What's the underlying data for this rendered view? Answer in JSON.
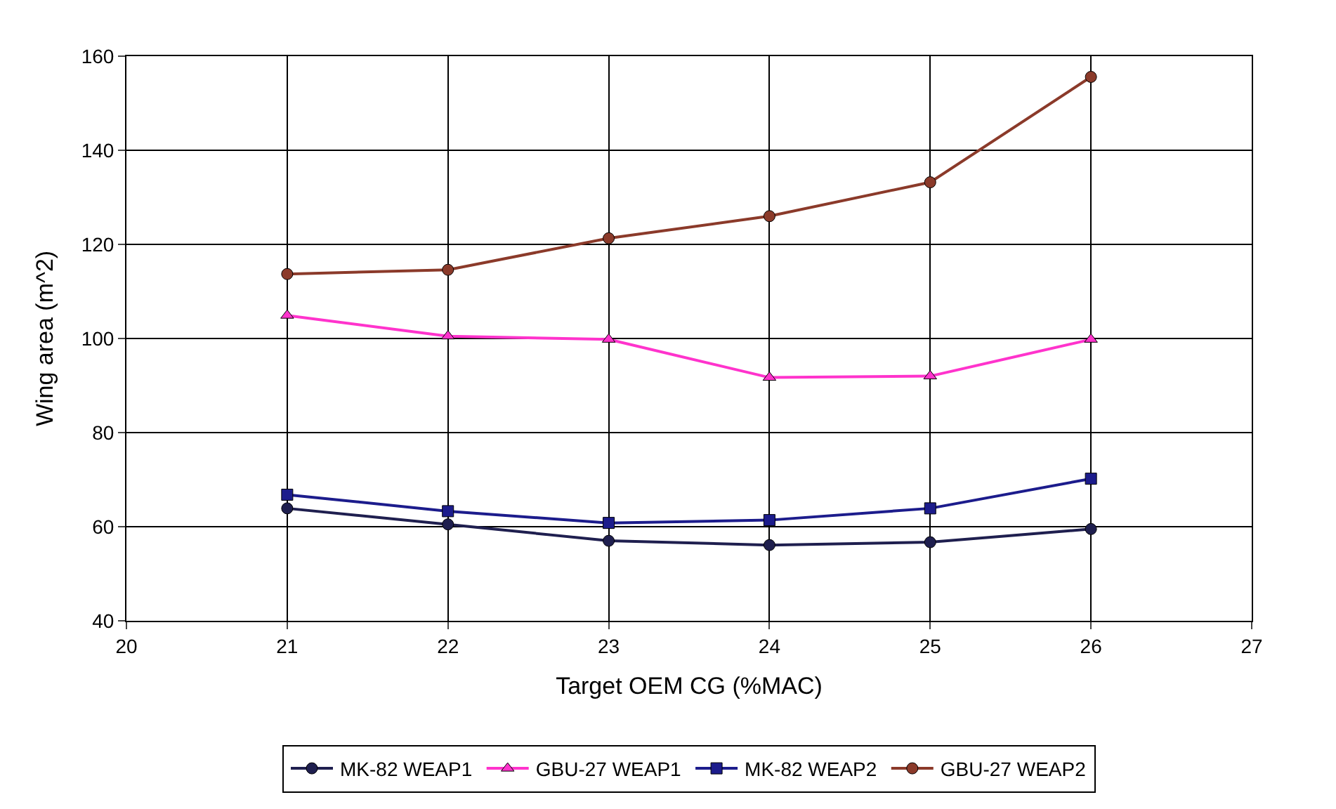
{
  "chart_data": {
    "type": "line",
    "xlabel": "Target OEM CG (%MAC)",
    "ylabel": "Wing area (m^2)",
    "x": [
      21,
      22,
      23,
      24,
      25,
      26
    ],
    "series": [
      {
        "name": "MK-82 WEAP1",
        "color": "#1f1f4f",
        "marker": "circle",
        "values": [
          63.9,
          60.5,
          57,
          56.1,
          56.7,
          59.5
        ]
      },
      {
        "name": "GBU-27 WEAP1",
        "color": "#ff33cc",
        "marker": "triangle",
        "values": [
          104.9,
          100.5,
          99.8,
          91.7,
          92,
          99.8
        ]
      },
      {
        "name": "MK-82 WEAP2",
        "color": "#1c1c8c",
        "marker": "square",
        "values": [
          66.8,
          63.3,
          60.8,
          61.4,
          63.9,
          70.2
        ]
      },
      {
        "name": "GBU-27 WEAP2",
        "color": "#8b3a2a",
        "marker": "circle",
        "values": [
          113.7,
          114.6,
          121.3,
          126,
          133.2,
          155.6
        ]
      }
    ],
    "xlim": [
      20,
      27
    ],
    "xticks": [
      20,
      21,
      22,
      23,
      24,
      25,
      26,
      27
    ],
    "ylim": [
      40,
      160
    ],
    "yticks": [
      40,
      60,
      80,
      100,
      120,
      140,
      160
    ],
    "grid": true,
    "legend": "bottom",
    "line_style": "solid"
  }
}
